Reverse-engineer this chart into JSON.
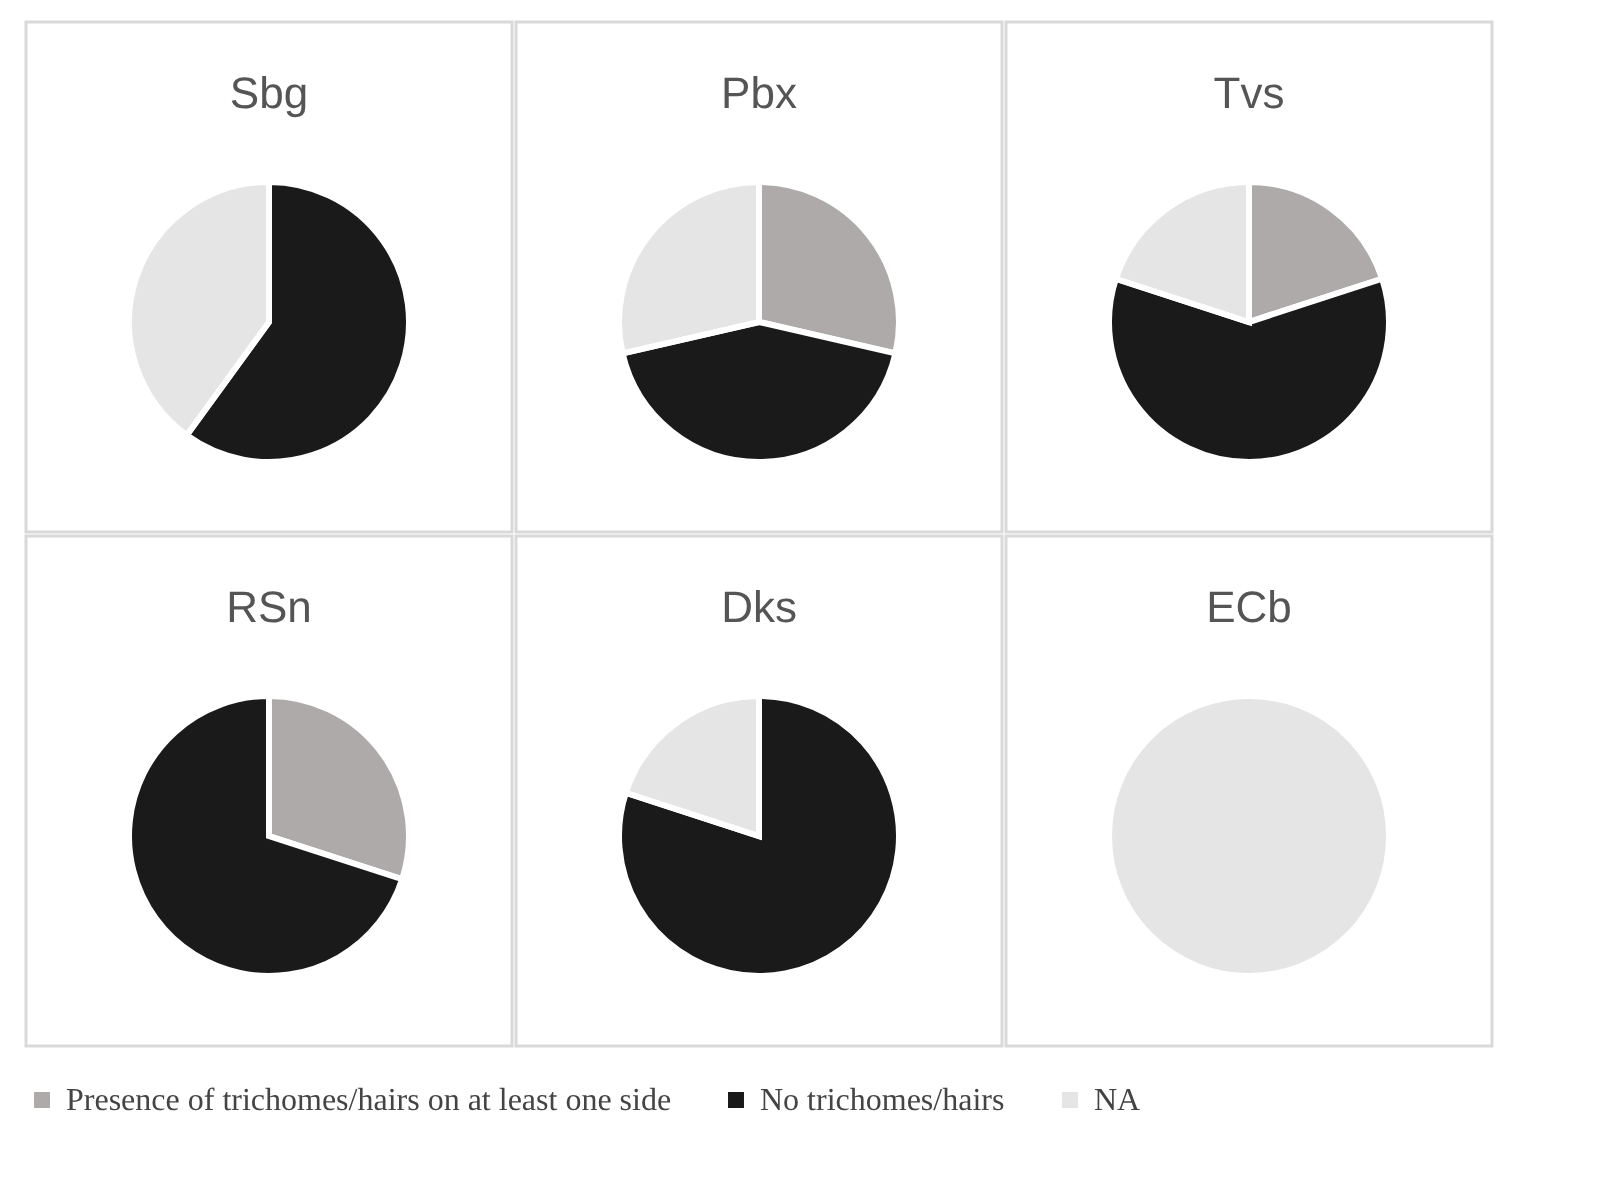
{
  "chart_data": [
    {
      "type": "pie",
      "title": "Sbg",
      "categories": [
        "Presence of trichomes/hairs on at least one side",
        "No trichomes/hairs",
        "NA"
      ],
      "values": [
        0,
        60,
        40
      ],
      "colors": [
        "#aeaaaa",
        "#1a1a1a",
        "#e5e5e5"
      ],
      "legend": "bottom"
    },
    {
      "type": "pie",
      "title": "Pbx",
      "categories": [
        null,
        null,
        null
      ],
      "values": [
        28.6,
        42.8,
        28.6
      ],
      "colors": [
        "#aeaaaa",
        "#1a1a1a",
        "#e5e5e5"
      ]
    },
    {
      "type": "pie",
      "title": "Tvs",
      "categories": [
        null,
        null,
        null
      ],
      "values": [
        20,
        60,
        20
      ],
      "colors": [
        "#aeaaaa",
        "#1a1a1a",
        "#e5e5e5"
      ]
    },
    {
      "type": "pie",
      "title": "RSn",
      "categories": [
        null,
        null,
        null
      ],
      "values": [
        30,
        70,
        0
      ],
      "colors": [
        "#aeaaaa",
        "#1a1a1a",
        "#e5e5e5"
      ]
    },
    {
      "type": "pie",
      "title": "Dks",
      "categories": [
        null,
        null,
        null
      ],
      "values": [
        0,
        80,
        20
      ],
      "colors": [
        "#aeaaaa",
        "#1a1a1a",
        "#e5e5e5"
      ]
    },
    {
      "type": "pie",
      "title": "ECb",
      "categories": [
        null,
        null,
        null
      ],
      "values": [
        0,
        0,
        100
      ],
      "colors": [
        "#aeaaaa",
        "#1a1a1a",
        "#e5e5e5"
      ]
    }
  ]
}
